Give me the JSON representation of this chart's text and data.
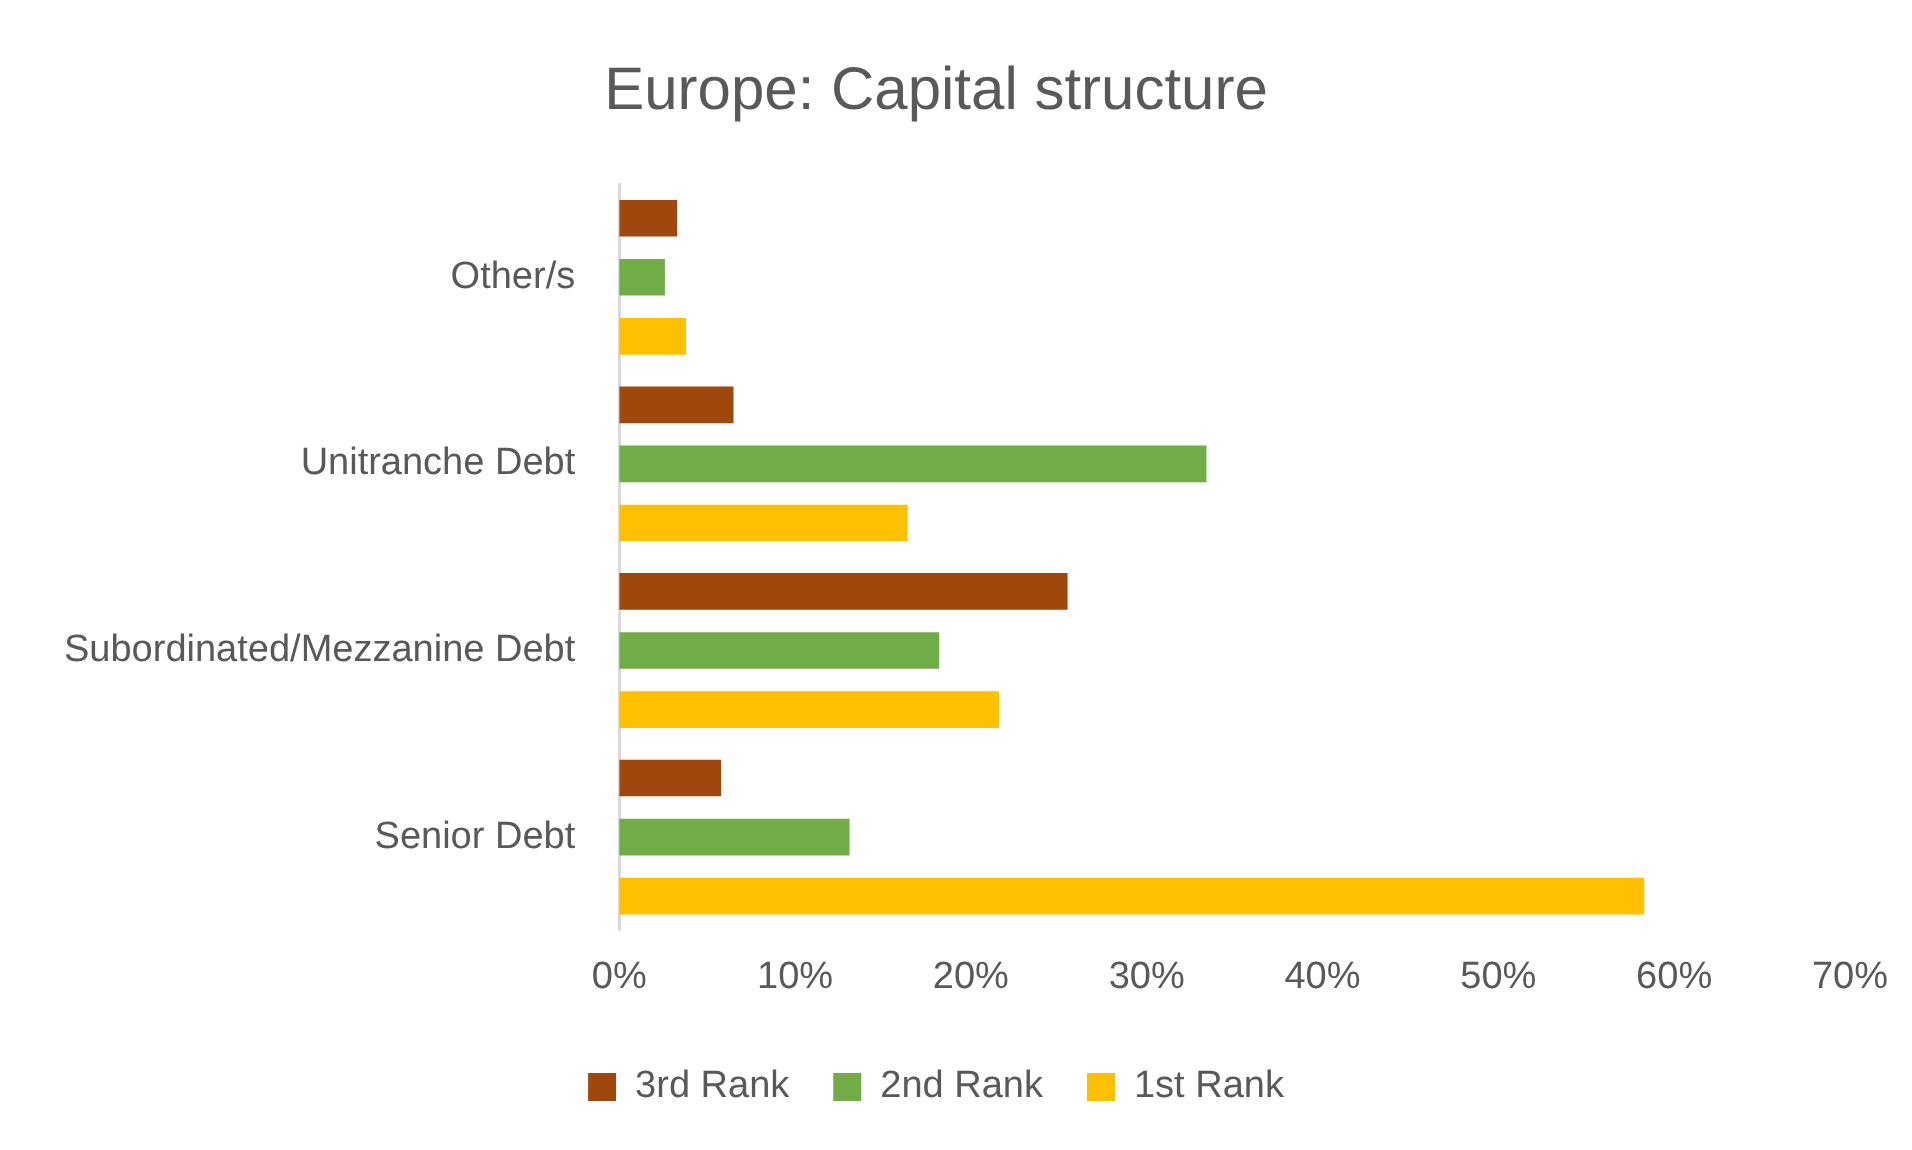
{
  "chart_data": {
    "type": "bar",
    "orientation": "horizontal",
    "title": "Europe: Capital structure",
    "categories": [
      "Other/s",
      "Unitranche Debt",
      "Subordinated/Mezzanine Debt",
      "Senior Debt"
    ],
    "series": [
      {
        "name": "3rd Rank",
        "color": "#9e480e",
        "values": [
          3.3,
          6.5,
          25.5,
          5.8
        ]
      },
      {
        "name": "2nd Rank",
        "color": "#70ad47",
        "values": [
          2.6,
          33.4,
          18.2,
          13.1
        ]
      },
      {
        "name": "1st Rank",
        "color": "#ffc000",
        "values": [
          3.8,
          16.4,
          21.6,
          58.3
        ]
      }
    ],
    "xlim": [
      0,
      70
    ],
    "xticks": [
      {
        "value": 0,
        "label": "0%"
      },
      {
        "value": 10,
        "label": "10%"
      },
      {
        "value": 20,
        "label": "20%"
      },
      {
        "value": 30,
        "label": "30%"
      },
      {
        "value": 40,
        "label": "40%"
      },
      {
        "value": 50,
        "label": "50%"
      },
      {
        "value": 60,
        "label": "60%"
      },
      {
        "value": 70,
        "label": "70%"
      }
    ],
    "grid": false,
    "legend": "bottom"
  }
}
